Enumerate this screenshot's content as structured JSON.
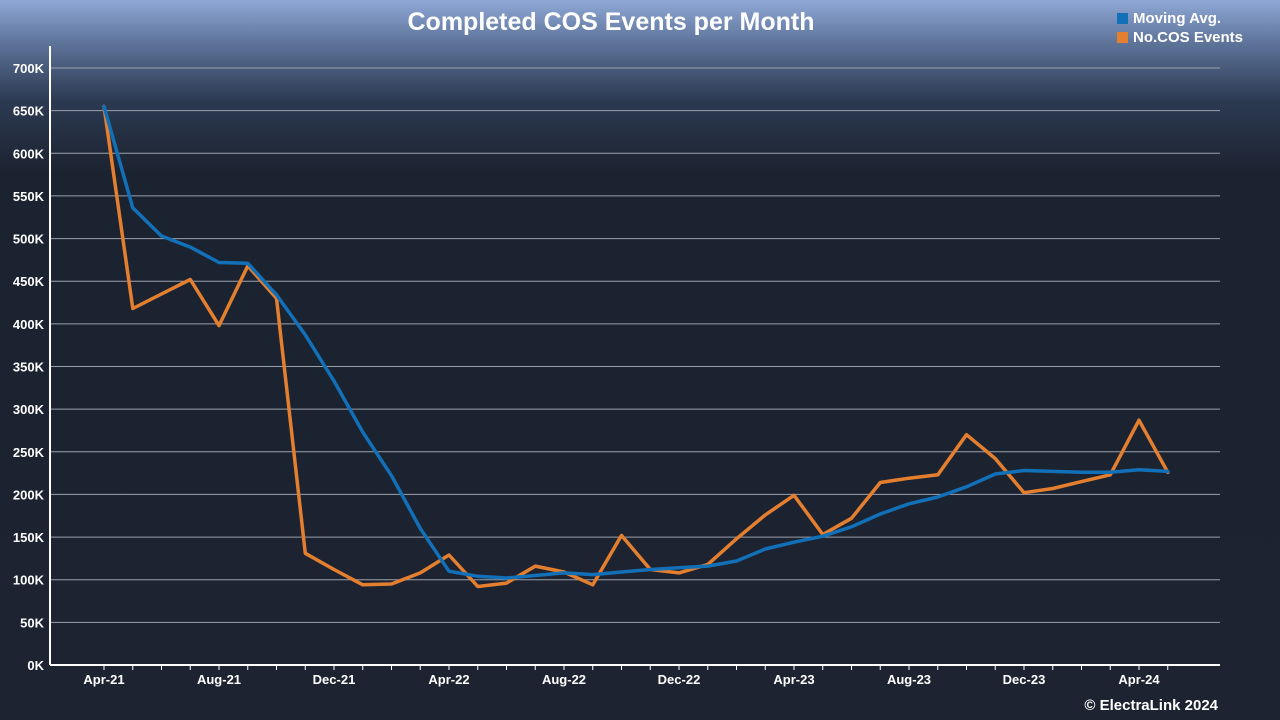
{
  "chart_data": {
    "type": "line",
    "title": "Completed COS Events per Month",
    "xlabel": "",
    "ylabel": "",
    "ylim": [
      0,
      700000
    ],
    "y_ticks": [
      0,
      50000,
      100000,
      150000,
      200000,
      250000,
      300000,
      350000,
      400000,
      450000,
      500000,
      550000,
      600000,
      650000,
      700000
    ],
    "y_tick_labels": [
      "0K",
      "50K",
      "100K",
      "150K",
      "200K",
      "250K",
      "300K",
      "350K",
      "400K",
      "450K",
      "500K",
      "550K",
      "600K",
      "650K",
      "700K"
    ],
    "x_tick_labels": [
      "Apr-21",
      "Aug-21",
      "Dec-21",
      "Apr-22",
      "Aug-22",
      "Dec-22",
      "Apr-23",
      "Aug-23",
      "Dec-23",
      "Apr-24"
    ],
    "x_tick_index": [
      0,
      4,
      8,
      12,
      16,
      20,
      24,
      28,
      32,
      36
    ],
    "months": [
      "Apr-21",
      "May-21",
      "Jun-21",
      "Jul-21",
      "Aug-21",
      "Sep-21",
      "Oct-21",
      "Nov-21",
      "Dec-21",
      "Jan-22",
      "Feb-22",
      "Mar-22",
      "Apr-22",
      "May-22",
      "Jun-22",
      "Jul-22",
      "Aug-22",
      "Sep-22",
      "Oct-22",
      "Nov-22",
      "Dec-22",
      "Jan-23",
      "Feb-23",
      "Mar-23",
      "Apr-23",
      "May-23",
      "Jun-23",
      "Jul-23",
      "Aug-23",
      "Sep-23",
      "Oct-23",
      "Nov-23",
      "Dec-23",
      "Jan-24",
      "Feb-24",
      "Mar-24",
      "Apr-24",
      "May-24"
    ],
    "series": [
      {
        "name": "Moving Avg.",
        "color": "#1170b8",
        "values": [
          655000,
          536000,
          503000,
          490000,
          472000,
          471000,
          434000,
          387000,
          333000,
          273000,
          222000,
          160000,
          110000,
          104000,
          102000,
          105000,
          108000,
          106000,
          109000,
          112000,
          114000,
          116000,
          122000,
          136000,
          144000,
          151000,
          162000,
          177000,
          189000,
          197000,
          209000,
          224000,
          228000,
          227000,
          226000,
          226000,
          229000,
          227000
        ]
      },
      {
        "name": "No.COS Events",
        "color": "#e37f2f",
        "values": [
          655000,
          418000,
          435000,
          452000,
          398000,
          468000,
          430000,
          131000,
          112000,
          94000,
          95000,
          108000,
          129000,
          92000,
          96000,
          116000,
          109000,
          94000,
          152000,
          112000,
          108000,
          118000,
          148000,
          176000,
          199000,
          153000,
          172000,
          214000,
          219000,
          223000,
          270000,
          242000,
          202000,
          207000,
          215000,
          223000,
          287000,
          226000
        ]
      }
    ]
  },
  "legend": {
    "items": [
      {
        "label": "Moving Avg.",
        "color": "#1170b8"
      },
      {
        "label": "No.COS Events",
        "color": "#e37f2f"
      }
    ]
  },
  "footer": {
    "copyright": "© ElectraLink 2024"
  }
}
